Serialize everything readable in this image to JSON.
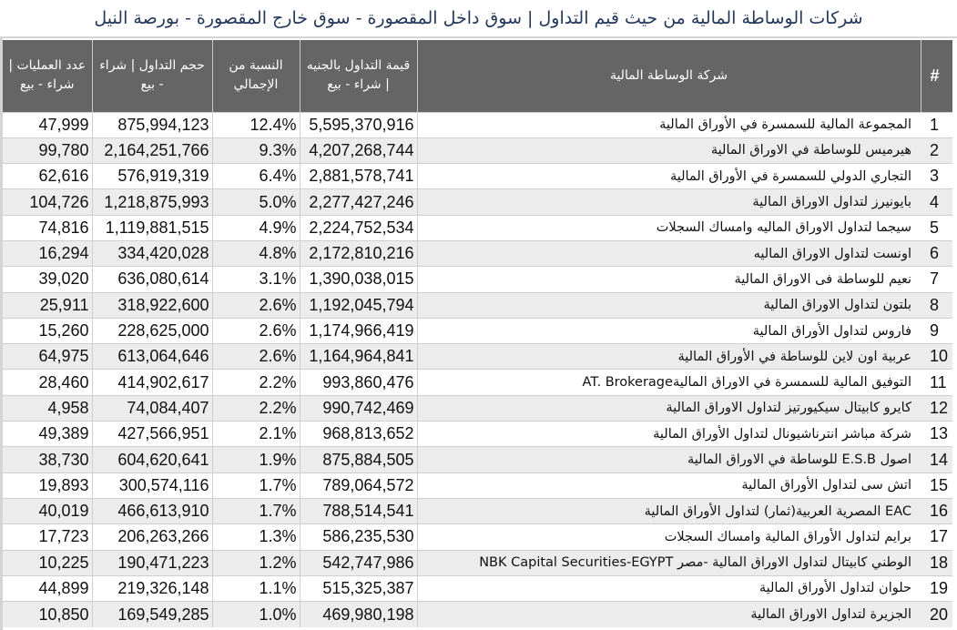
{
  "title": "شركات الوساطة المالية من حيث قيم التداول | سوق داخل المقصورة - سوق خارج المقصورة - بورصة النيل",
  "colors": {
    "header_bg": "#656565",
    "title_color": "#23385a",
    "stripe": "#ececec"
  },
  "table": {
    "headers": {
      "operations": "عدد العمليات | شراء - بيع",
      "volume": "حجم التداول | شراء - بيع",
      "percent": "النسبة من الإجمالي",
      "value": "قيمة التداول بالجنيه | شراء - بيع",
      "company": "شركة الوساطة المالية",
      "rank": "#"
    },
    "rows": [
      {
        "rank": "1",
        "company": "المجموعة المالية للسمسرة في الأوراق المالية",
        "value": "5,595,370,916",
        "percent": "12.4%",
        "volume": "875,994,123",
        "operations": "47,999"
      },
      {
        "rank": "2",
        "company": "هيرميس للوساطة في الاوراق المالية",
        "value": "4,207,268,744",
        "percent": "9.3%",
        "volume": "2,164,251,766",
        "operations": "99,780"
      },
      {
        "rank": "3",
        "company": "التجاري الدولي للسمسرة في الأوراق المالية",
        "value": "2,881,578,741",
        "percent": "6.4%",
        "volume": "576,919,319",
        "operations": "62,616"
      },
      {
        "rank": "4",
        "company": "بايونيرز لتداول الاوراق المالية",
        "value": "2,277,427,246",
        "percent": "5.0%",
        "volume": "1,218,875,993",
        "operations": "104,726"
      },
      {
        "rank": "5",
        "company": "سيجما لتداول الاوراق الماليه وامساك السجلات",
        "value": "2,224,752,534",
        "percent": "4.9%",
        "volume": "1,119,881,515",
        "operations": "74,816"
      },
      {
        "rank": "6",
        "company": "اونست لتداول الاوراق الماليه",
        "value": "2,172,810,216",
        "percent": "4.8%",
        "volume": "334,420,028",
        "operations": "16,294"
      },
      {
        "rank": "7",
        "company": "نعيم للوساطة فى الاوراق المالية",
        "value": "1,390,038,015",
        "percent": "3.1%",
        "volume": "636,080,614",
        "operations": "39,020"
      },
      {
        "rank": "8",
        "company": "بلتون لتداول الاوراق المالية",
        "value": "1,192,045,794",
        "percent": "2.6%",
        "volume": "318,922,600",
        "operations": "25,911"
      },
      {
        "rank": "9",
        "company": "فاروس لتداول الأوراق المالية",
        "value": "1,174,966,419",
        "percent": "2.6%",
        "volume": "228,625,000",
        "operations": "15,260"
      },
      {
        "rank": "10",
        "company": "عربية اون لاين للوساطة في الأوراق المالية",
        "value": "1,164,964,841",
        "percent": "2.6%",
        "volume": "613,064,646",
        "operations": "64,975"
      },
      {
        "rank": "11",
        "company": "التوفيق المالية للسمسرة في الاوراق الماليةAT. Brokerage",
        "value": "993,860,476",
        "percent": "2.2%",
        "volume": "414,902,617",
        "operations": "28,460"
      },
      {
        "rank": "12",
        "company": "كايرو كابيتال سيكيورتيز لتداول الاوراق المالية",
        "value": "990,742,469",
        "percent": "2.2%",
        "volume": "74,084,407",
        "operations": "4,958"
      },
      {
        "rank": "13",
        "company": "شركة مباشر انترناشيونال لتداول الأوراق المالية",
        "value": "968,813,652",
        "percent": "2.1%",
        "volume": "427,566,951",
        "operations": "49,389"
      },
      {
        "rank": "14",
        "company": "اصول E.S.B للوساطة في الاوراق المالية",
        "value": "875,884,505",
        "percent": "1.9%",
        "volume": "604,620,641",
        "operations": "38,730"
      },
      {
        "rank": "15",
        "company": "اتش سى لتداول الأوراق المالية",
        "value": "789,064,572",
        "percent": "1.7%",
        "volume": "300,574,116",
        "operations": "19,893"
      },
      {
        "rank": "16",
        "company": "EAC المصرية العربية(ثمار) لتداول الأوراق المالية",
        "value": "788,514,541",
        "percent": "1.7%",
        "volume": "466,613,910",
        "operations": "40,019"
      },
      {
        "rank": "17",
        "company": "برايم لتداول الأوراق المالية وامساك السجلات",
        "value": "586,235,530",
        "percent": "1.3%",
        "volume": "206,263,266",
        "operations": "17,723"
      },
      {
        "rank": "18",
        "company": "الوطني كابيتال لتداول الاوراق المالية -مصر NBK Capital Securities-EGYPT",
        "value": "542,747,986",
        "percent": "1.2%",
        "volume": "190,471,223",
        "operations": "10,225"
      },
      {
        "rank": "19",
        "company": "حلوان لتداول الأوراق المالية",
        "value": "515,325,387",
        "percent": "1.1%",
        "volume": "219,326,148",
        "operations": "44,899"
      },
      {
        "rank": "20",
        "company": "الجزيرة لتداول الاوراق المالية",
        "value": "469,980,198",
        "percent": "1.0%",
        "volume": "169,549,285",
        "operations": "10,850"
      }
    ]
  }
}
